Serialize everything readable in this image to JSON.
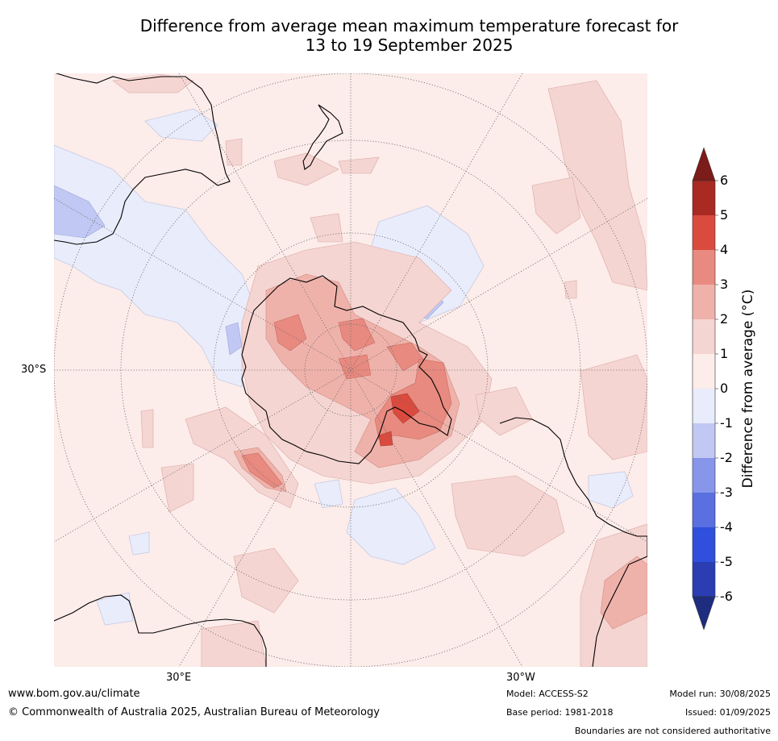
{
  "title": {
    "line1": "Difference from average mean maximum temperature forecast for",
    "line2": "13 to 19 September 2025"
  },
  "map": {
    "lat_label": "30°S",
    "lon_labels": [
      "30°E",
      "30°W"
    ]
  },
  "colorbar": {
    "title": "Difference from average (°C)",
    "ticks": [
      "6",
      "5",
      "4",
      "3",
      "2",
      "1",
      "0",
      "-1",
      "-2",
      "-3",
      "-4",
      "-5",
      "-6"
    ],
    "colors_top_to_bottom": [
      "#7b1c1a",
      "#a82a22",
      "#d94b3e",
      "#e88a80",
      "#efb2aa",
      "#f5d5d2",
      "#fcecea",
      "#e9ecfb",
      "#c0c8f3",
      "#8796ea",
      "#5a6fe0",
      "#2f4fdc",
      "#2a3db3",
      "#1e2d80"
    ]
  },
  "footer": {
    "website": "www.bom.gov.au/climate",
    "copyright": "© Commonwealth of Australia 2025, Australian Bureau of Meteorology",
    "model": "Model: ACCESS-S2",
    "base_period": "Base period: 1981-2018",
    "model_run": "Model run: 30/08/2025",
    "issued": "Issued: 01/09/2025",
    "disclaimer": "Boundaries are not considered authoritative"
  }
}
